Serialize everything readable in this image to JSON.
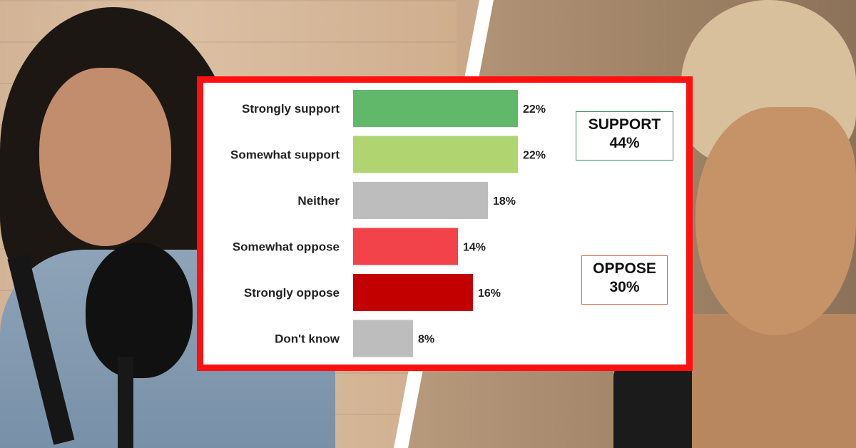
{
  "chart_data": {
    "type": "bar",
    "orientation": "horizontal",
    "title": "",
    "xlabel": "",
    "ylabel": "",
    "xlim": [
      0,
      22
    ],
    "grid": false,
    "categories": [
      "Strongly support",
      "Somewhat support",
      "Neither",
      "Somewhat oppose",
      "Strongly oppose",
      "Don't know"
    ],
    "values": [
      22,
      22,
      18,
      14,
      16,
      8
    ],
    "value_labels": [
      "22%",
      "22%",
      "18%",
      "14%",
      "16%",
      "8%"
    ],
    "colors": [
      "#62b86a",
      "#b0d470",
      "#bdbdbd",
      "#f2424a",
      "#c20000",
      "#bdbdbd"
    ]
  },
  "summary": {
    "support": {
      "label": "SUPPORT",
      "value": "44%",
      "border_color": "#3a8f5e"
    },
    "oppose": {
      "label": "OPPOSE",
      "value": "30%",
      "border_color": "#d9614a"
    }
  },
  "frame_color": "#ff1010"
}
